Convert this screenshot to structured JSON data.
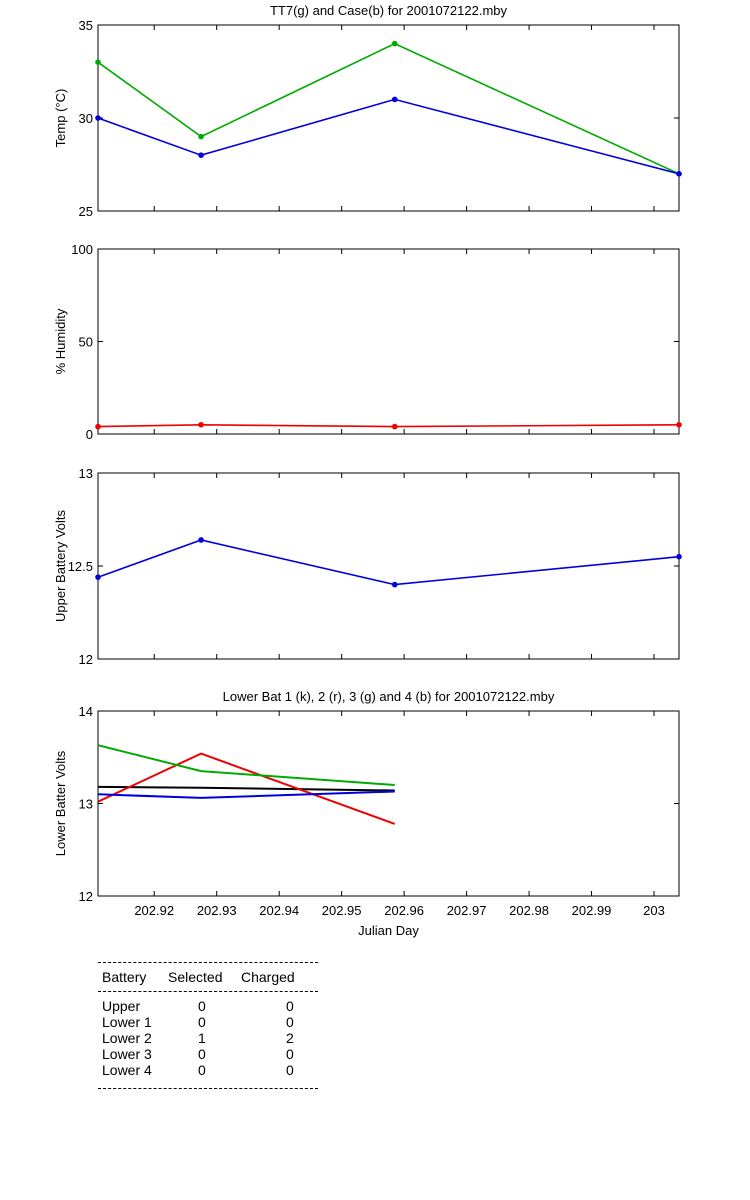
{
  "chart_data": [
    {
      "type": "line",
      "title": "TT7(g) and Case(b) for 2001072122.mby",
      "xlabel": "",
      "ylabel": "Temp  (°C)",
      "xlim": [
        202.911,
        203.004
      ],
      "ylim": [
        25,
        35
      ],
      "yticks": [
        "25",
        "30",
        "35"
      ],
      "x": [
        202.911,
        202.9275,
        202.9585,
        203.004
      ],
      "series": [
        {
          "color": "#00aa00",
          "values": [
            33,
            29,
            34,
            27
          ],
          "markers": true
        },
        {
          "color": "#0000dd",
          "values": [
            30,
            28,
            31,
            27
          ],
          "markers": true
        }
      ]
    },
    {
      "type": "line",
      "title": "",
      "xlabel": "",
      "ylabel": "% Humidity",
      "xlim": [
        202.911,
        203.004
      ],
      "ylim": [
        0,
        100
      ],
      "yticks": [
        "0",
        "50",
        "100"
      ],
      "x": [
        202.911,
        202.9275,
        202.9585,
        203.004
      ],
      "series": [
        {
          "color": "#ee0000",
          "values": [
            4,
            5,
            4,
            5
          ],
          "markers": true
        }
      ]
    },
    {
      "type": "line",
      "title": "",
      "xlabel": "",
      "ylabel": "Upper Battery Volts",
      "xlim": [
        202.911,
        203.004
      ],
      "ylim": [
        12,
        13
      ],
      "yticks": [
        "12",
        "12.5",
        "13"
      ],
      "x": [
        202.911,
        202.9275,
        202.9585,
        203.004
      ],
      "series": [
        {
          "color": "#0000dd",
          "values": [
            12.44,
            12.64,
            12.4,
            12.55
          ],
          "markers": true
        }
      ]
    },
    {
      "type": "line",
      "title": "Lower Bat 1 (k), 2 (r), 3 (g) and 4 (b) for 2001072122.mby",
      "xlabel": "Julian Day",
      "ylabel": "Lower Batter Volts",
      "xlim": [
        202.911,
        203.004
      ],
      "ylim": [
        12,
        14
      ],
      "yticks": [
        "12",
        "13",
        "14"
      ],
      "xticks": [
        {
          "value": 202.92,
          "label": "202.92"
        },
        {
          "value": 202.93,
          "label": "202.93"
        },
        {
          "value": 202.94,
          "label": "202.94"
        },
        {
          "value": 202.95,
          "label": "202.95"
        },
        {
          "value": 202.96,
          "label": "202.96"
        },
        {
          "value": 202.97,
          "label": "202.97"
        },
        {
          "value": 202.98,
          "label": "202.98"
        },
        {
          "value": 202.99,
          "label": "202.99"
        },
        {
          "value": 203.0,
          "label": "203"
        }
      ],
      "x": [
        202.911,
        202.9275,
        202.9585
      ],
      "series": [
        {
          "color": "#000000",
          "values": [
            13.18,
            13.17,
            13.14
          ],
          "markers": false
        },
        {
          "color": "#ee0000",
          "values": [
            13.02,
            13.54,
            12.78
          ],
          "markers": false
        },
        {
          "color": "#00aa00",
          "values": [
            13.63,
            13.35,
            13.2
          ],
          "markers": false
        },
        {
          "color": "#0000dd",
          "values": [
            13.1,
            13.06,
            13.13
          ],
          "markers": false
        }
      ]
    }
  ],
  "battery_table": {
    "headers": [
      "Battery",
      "Selected",
      "Charged"
    ],
    "rows": [
      {
        "battery": "Upper",
        "selected": "0",
        "charged": "0"
      },
      {
        "battery": "Lower 1",
        "selected": "0",
        "charged": "0"
      },
      {
        "battery": "Lower 2",
        "selected": "1",
        "charged": "2"
      },
      {
        "battery": "Lower 3",
        "selected": "0",
        "charged": "0"
      },
      {
        "battery": "Lower 4",
        "selected": "0",
        "charged": "0"
      }
    ]
  }
}
